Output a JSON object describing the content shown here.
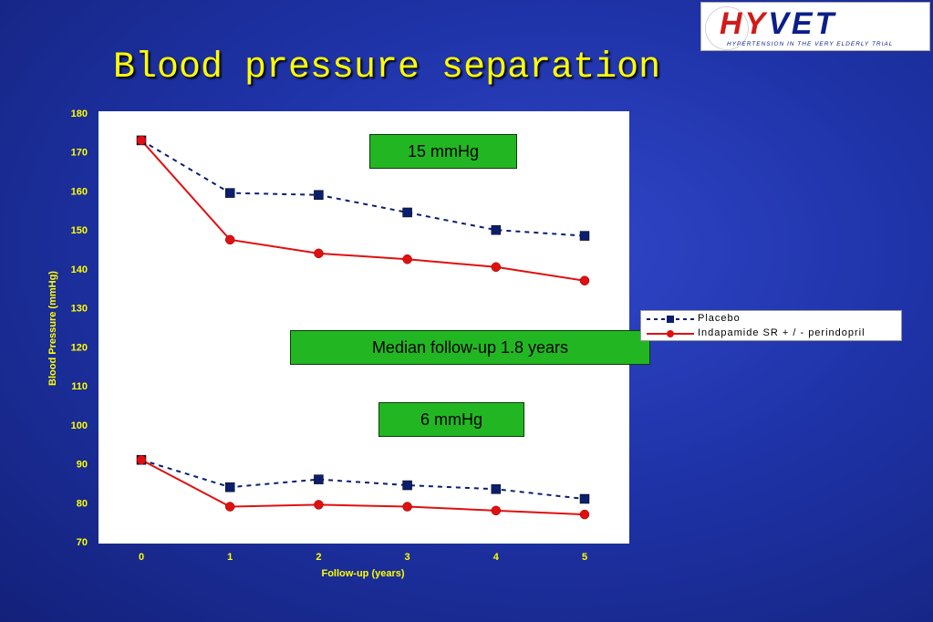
{
  "slide": {
    "title": "Blood pressure separation"
  },
  "logo": {
    "word_red": "HY",
    "word_blue": "VET",
    "tagline": "HYPERTENSION IN THE VERY ELDERLY TRIAL"
  },
  "annotations": {
    "top_box": "15 mmHg",
    "middle_box": "Median follow-up 1.8 years",
    "bottom_box": "6 mmHg"
  },
  "colors": {
    "placebo": "#0b1f6e",
    "treatment": "#e01010",
    "axis_text": "#ffff00",
    "box_fill": "#22b722"
  },
  "chart_data": {
    "type": "line",
    "xlabel": "Follow-up (years)",
    "ylabel": "Blood Pressure (mmHg)",
    "x": [
      0,
      1,
      2,
      3,
      4,
      5
    ],
    "ylim": [
      70,
      180
    ],
    "y_ticks": [
      70,
      80,
      90,
      100,
      110,
      120,
      130,
      140,
      150,
      160,
      170,
      180
    ],
    "grid": false,
    "legend_position": "right",
    "series": [
      {
        "name": "Placebo",
        "group": "systolic",
        "style": "dashed",
        "marker": "square",
        "values": [
          173,
          159.5,
          159,
          154.5,
          150,
          148.5
        ]
      },
      {
        "name": "Indapamide SR +/- perindopril",
        "group": "systolic",
        "style": "solid",
        "marker": "circle",
        "values": [
          173,
          147.5,
          144,
          142.5,
          140.5,
          137
        ]
      },
      {
        "name": "Placebo",
        "group": "diastolic",
        "style": "dashed",
        "marker": "square",
        "values": [
          91,
          84,
          86,
          84.5,
          83.5,
          81
        ]
      },
      {
        "name": "Indapamide SR +/- perindopril",
        "group": "diastolic",
        "style": "solid",
        "marker": "circle",
        "values": [
          91,
          79,
          79.5,
          79,
          78,
          77
        ]
      }
    ]
  },
  "legend": [
    {
      "label": "Placebo",
      "style": "dashed",
      "marker": "square",
      "color": "#0b1f6e"
    },
    {
      "label": "Indapamide SR + / - perindopril",
      "style": "solid",
      "marker": "circle",
      "color": "#e01010"
    }
  ]
}
